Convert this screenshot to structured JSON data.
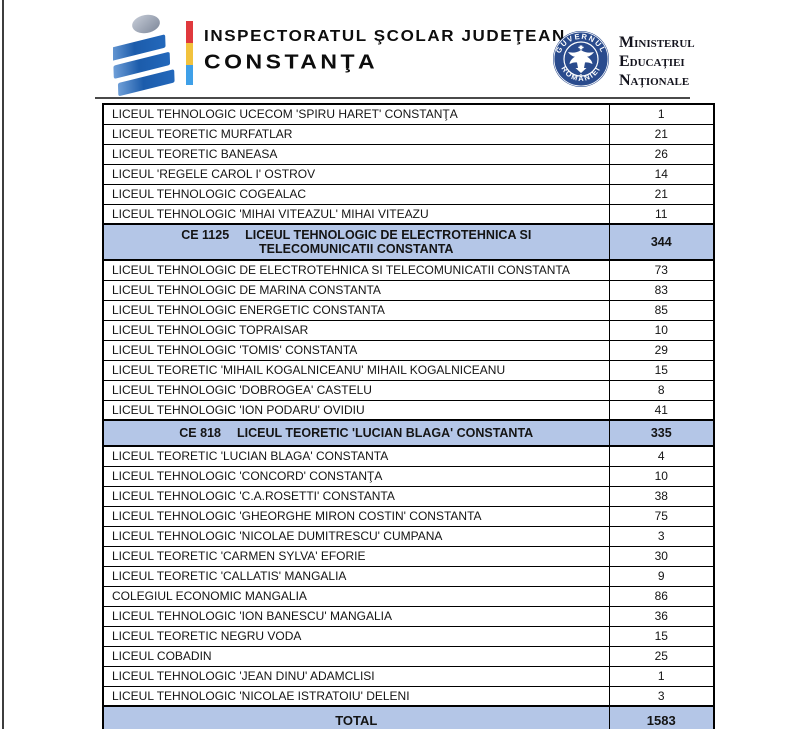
{
  "header": {
    "org_line1": "INSPECTORATUL ŞCOLAR JUDEŢEAN",
    "org_line2": "CONSTANŢA",
    "seal_top": "GUVERNUL",
    "seal_bottom": "ROMÂNIEI",
    "ministry": [
      "Ministerul",
      "Educației",
      "Naționale"
    ]
  },
  "colors": {
    "group_row_bg": "#b4c6e7",
    "seal_blue": "#2a4b8d",
    "logo_blue": "#2063b4",
    "tricolor": [
      "#e0393d",
      "#f2c23d",
      "#3fa0e8"
    ]
  },
  "table": {
    "columns": [
      "school_name",
      "count"
    ],
    "rows": [
      {
        "type": "item",
        "name": "LICEUL TEHNOLOGIC UCECOM 'SPIRU HARET' CONSTANŢA",
        "value": "1"
      },
      {
        "type": "item",
        "name": "LICEUL TEORETIC MURFATLAR",
        "value": "21"
      },
      {
        "type": "item",
        "name": "LICEUL TEORETIC BANEASA",
        "value": "26"
      },
      {
        "type": "item",
        "name": "LICEUL 'REGELE CAROL I' OSTROV",
        "value": "14"
      },
      {
        "type": "item",
        "name": "LICEUL TEHNOLOGIC COGEALAC",
        "value": "21"
      },
      {
        "type": "item",
        "name": "LICEUL TEHNOLOGIC 'MIHAI VITEAZUL' MIHAI VITEAZU",
        "value": "11"
      },
      {
        "type": "group",
        "code": "CE 1125",
        "name": "LICEUL TEHNOLOGIC DE ELECTROTEHNICA SI TELECOMUNICATII CONSTANTA",
        "value": "344"
      },
      {
        "type": "item",
        "name": "LICEUL TEHNOLOGIC DE ELECTROTEHNICA SI TELECOMUNICATII CONSTANTA",
        "value": "73"
      },
      {
        "type": "item",
        "name": "LICEUL TEHNOLOGIC DE MARINA CONSTANTA",
        "value": "83"
      },
      {
        "type": "item",
        "name": "LICEUL TEHNOLOGIC ENERGETIC CONSTANTA",
        "value": "85"
      },
      {
        "type": "item",
        "name": "LICEUL TEHNOLOGIC TOPRAISAR",
        "value": "10"
      },
      {
        "type": "item",
        "name": "LICEUL TEHNOLOGIC 'TOMIS' CONSTANTA",
        "value": "29"
      },
      {
        "type": "item",
        "name": "LICEUL TEORETIC 'MIHAIL KOGALNICEANU' MIHAIL KOGALNICEANU",
        "value": "15"
      },
      {
        "type": "item",
        "name": "LICEUL TEHNOLOGIC 'DOBROGEA' CASTELU",
        "value": "8"
      },
      {
        "type": "item",
        "name": "LICEUL TEHNOLOGIC 'ION PODARU' OVIDIU",
        "value": "41"
      },
      {
        "type": "group",
        "code": "CE 818",
        "name": "LICEUL TEORETIC 'LUCIAN BLAGA' CONSTANTA",
        "value": "335"
      },
      {
        "type": "item",
        "name": "LICEUL TEORETIC 'LUCIAN BLAGA' CONSTANTA",
        "value": "4"
      },
      {
        "type": "item",
        "name": "LICEUL TEHNOLOGIC 'CONCORD' CONSTANŢA",
        "value": "10"
      },
      {
        "type": "item",
        "name": "LICEUL TEHNOLOGIC 'C.A.ROSETTI' CONSTANTA",
        "value": "38"
      },
      {
        "type": "item",
        "name": "LICEUL TEHNOLOGIC 'GHEORGHE MIRON COSTIN' CONSTANTA",
        "value": "75"
      },
      {
        "type": "item",
        "name": "LICEUL TEHNOLOGIC 'NICOLAE DUMITRESCU' CUMPANA",
        "value": "3"
      },
      {
        "type": "item",
        "name": "LICEUL TEORETIC 'CARMEN SYLVA' EFORIE",
        "value": "30"
      },
      {
        "type": "item",
        "name": "LICEUL TEORETIC 'CALLATIS' MANGALIA",
        "value": "9"
      },
      {
        "type": "item",
        "name": "COLEGIUL ECONOMIC MANGALIA",
        "value": "86"
      },
      {
        "type": "item",
        "name": "LICEUL TEHNOLOGIC 'ION BANESCU' MANGALIA",
        "value": "36"
      },
      {
        "type": "item",
        "name": "LICEUL TEORETIC NEGRU VODA",
        "value": "15"
      },
      {
        "type": "item",
        "name": "LICEUL COBADIN",
        "value": "25"
      },
      {
        "type": "item",
        "name": "LICEUL TEHNOLOGIC 'JEAN DINU' ADAMCLISI",
        "value": "1"
      },
      {
        "type": "item",
        "name": "LICEUL TEHNOLOGIC 'NICOLAE ISTRATOIU' DELENI",
        "value": "3"
      },
      {
        "type": "total",
        "name": "TOTAL",
        "value": "1583"
      }
    ]
  }
}
